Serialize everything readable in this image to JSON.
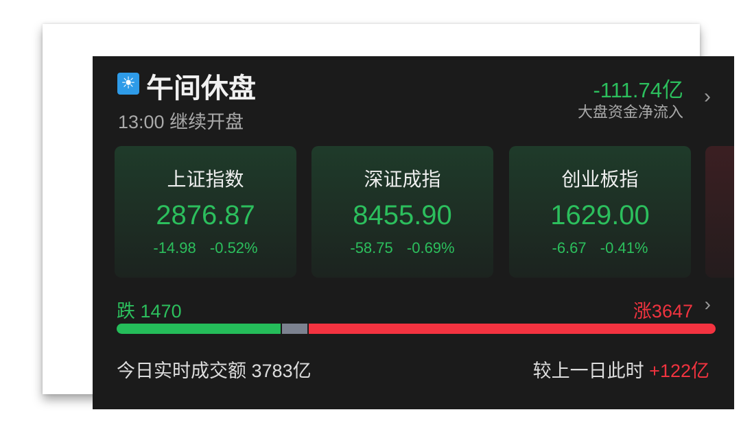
{
  "header": {
    "icon": "sun-icon",
    "title": "午间休盘",
    "subtitle": "13:00 继续开盘",
    "net_flow_value": "-111.74亿",
    "net_flow_label": "大盘资金净流入"
  },
  "indices": [
    {
      "name": "上证指数",
      "price": "2876.87",
      "change": "-14.98",
      "percent": "-0.52%"
    },
    {
      "name": "深证成指",
      "price": "8455.90",
      "change": "-58.75",
      "percent": "-0.69%"
    },
    {
      "name": "创业板指",
      "price": "1629.00",
      "change": "-6.67",
      "percent": "-0.41%"
    }
  ],
  "breadth": {
    "down_label": "跌",
    "down_count": "1470",
    "up_label": "涨",
    "up_count": "3647",
    "down_fraction": 0.275,
    "flat_fraction": 0.043,
    "up_fraction": 0.682
  },
  "footer": {
    "volume_label": "今日实时成交额",
    "volume_value": "3783亿",
    "compare_label": "较上一日此时",
    "compare_value": "+122亿"
  },
  "colors": {
    "down": "#2cbf5d",
    "up": "#f0333f",
    "flat": "#7c8290",
    "background": "#1b1b1b"
  }
}
